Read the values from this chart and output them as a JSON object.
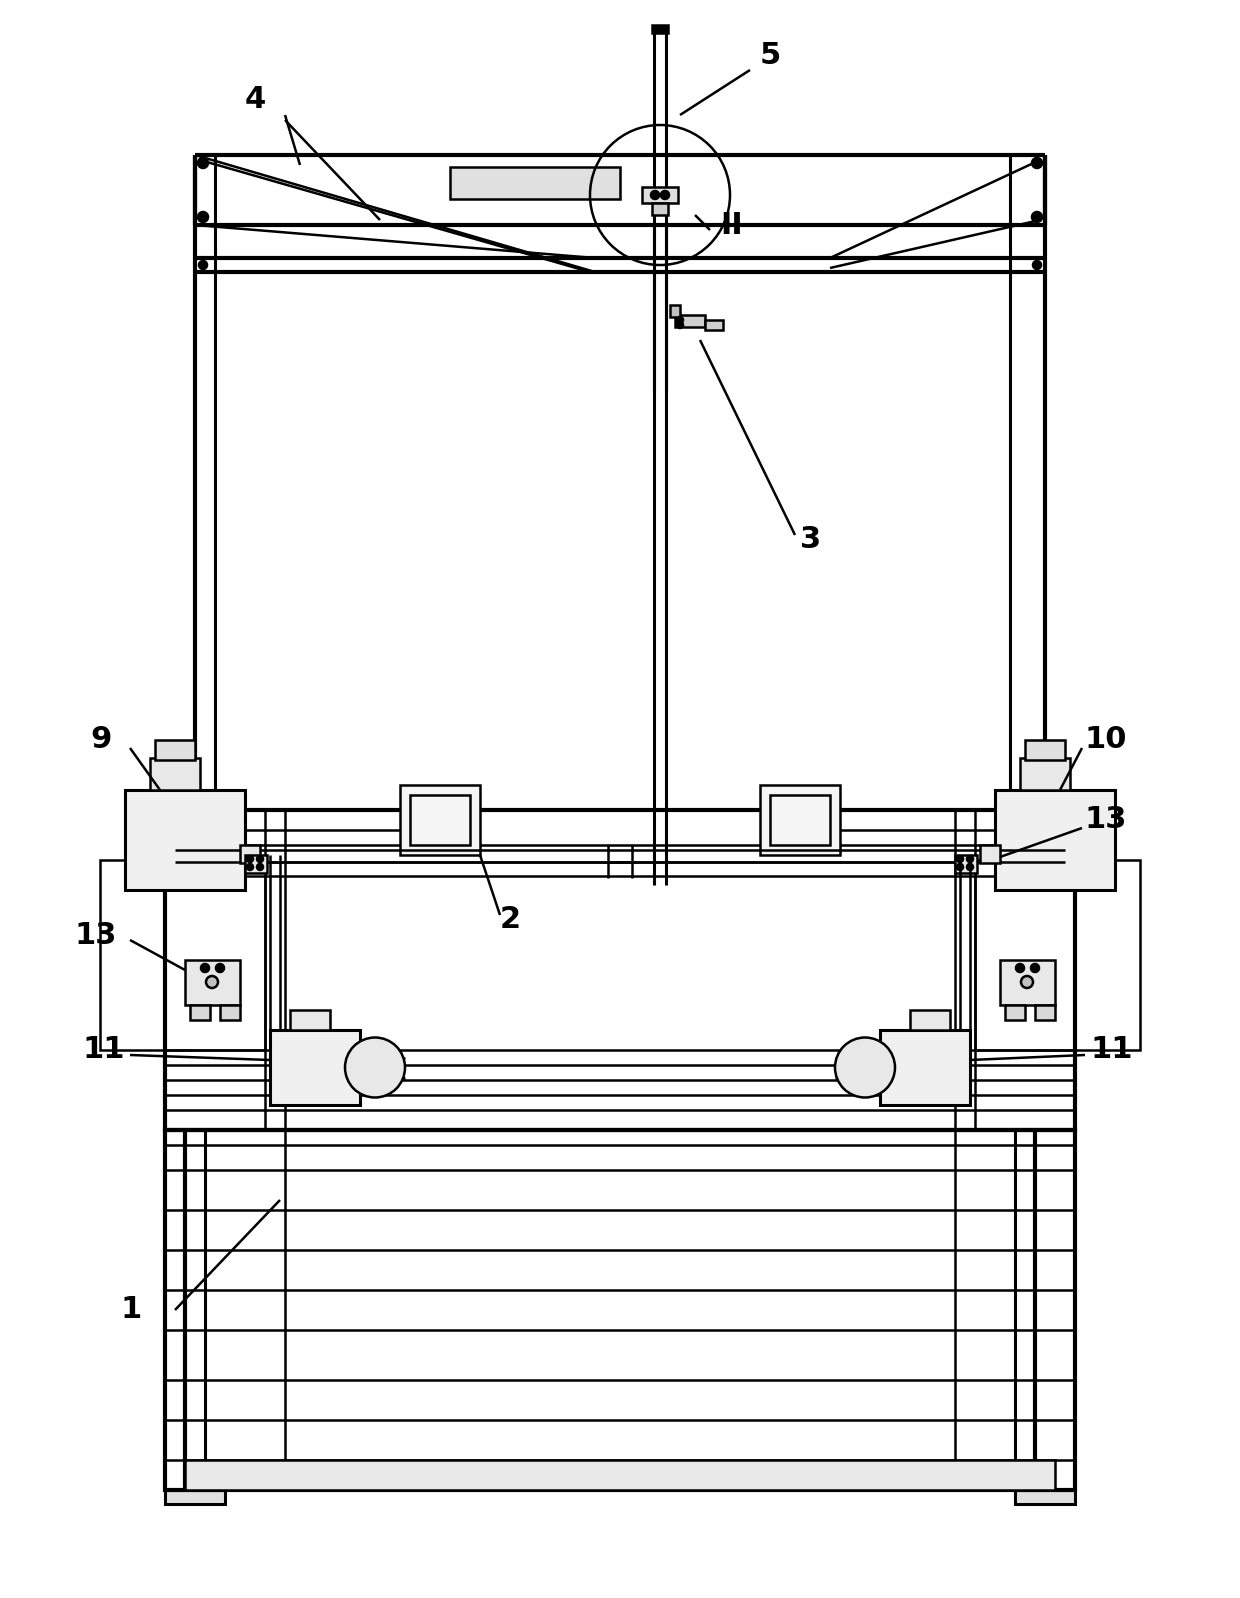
{
  "bg_color": "#ffffff",
  "lc": "#000000",
  "lw": 1.8,
  "tlw": 3.0,
  "mlw": 2.2,
  "figsize": [
    12.4,
    15.98
  ],
  "dpi": 100
}
